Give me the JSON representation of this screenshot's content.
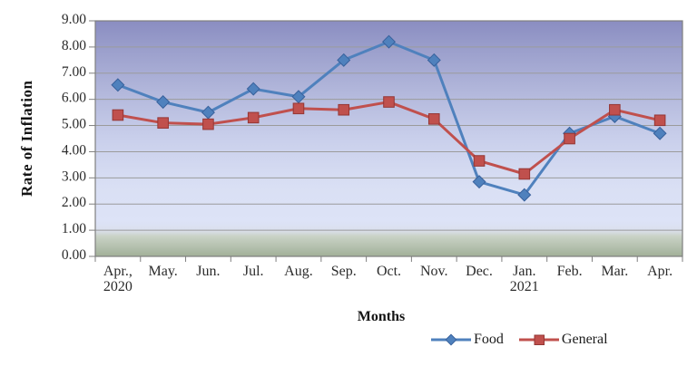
{
  "chart_data": {
    "type": "line",
    "title": "",
    "xlabel": "Months",
    "ylabel": "Rate of Inflation",
    "ylim": [
      0,
      9
    ],
    "ytick_interval": 1.0,
    "ytick_labels": [
      "0.00",
      "1.00",
      "2.00",
      "3.00",
      "4.00",
      "5.00",
      "6.00",
      "7.00",
      "8.00",
      "9.00"
    ],
    "categories": [
      "Apr.,\n2020",
      "May.",
      "Jun.",
      "Jul.",
      "Aug.",
      "Sep.",
      "Oct.",
      "Nov.",
      "Dec.",
      "Jan.\n2021",
      "Feb.",
      "Mar.",
      "Apr."
    ],
    "series": [
      {
        "name": "Food",
        "marker": "diamond",
        "color": "#4f81bd",
        "marker_stroke": "#38619c",
        "values": [
          6.55,
          5.9,
          5.5,
          6.4,
          6.1,
          7.5,
          8.2,
          7.5,
          2.85,
          2.35,
          4.7,
          5.35,
          4.7
        ]
      },
      {
        "name": "General",
        "marker": "square",
        "color": "#c0504d",
        "marker_stroke": "#943634",
        "values": [
          5.4,
          5.1,
          5.05,
          5.3,
          5.65,
          5.6,
          5.9,
          5.25,
          3.65,
          3.15,
          4.5,
          5.6,
          5.2
        ]
      }
    ],
    "grid": "horizontal",
    "legend_position": "bottom-center",
    "colors": {
      "gridline": "#9b9b9b",
      "plot_border": "#7f7f7f",
      "axis_text": "#2b2b2b",
      "plot_bg_gradient_top": "#8a8dc1",
      "plot_bg_gradient_mid": "#dde3f7",
      "plot_bg_gradient_bottom": "#a1b098"
    }
  }
}
